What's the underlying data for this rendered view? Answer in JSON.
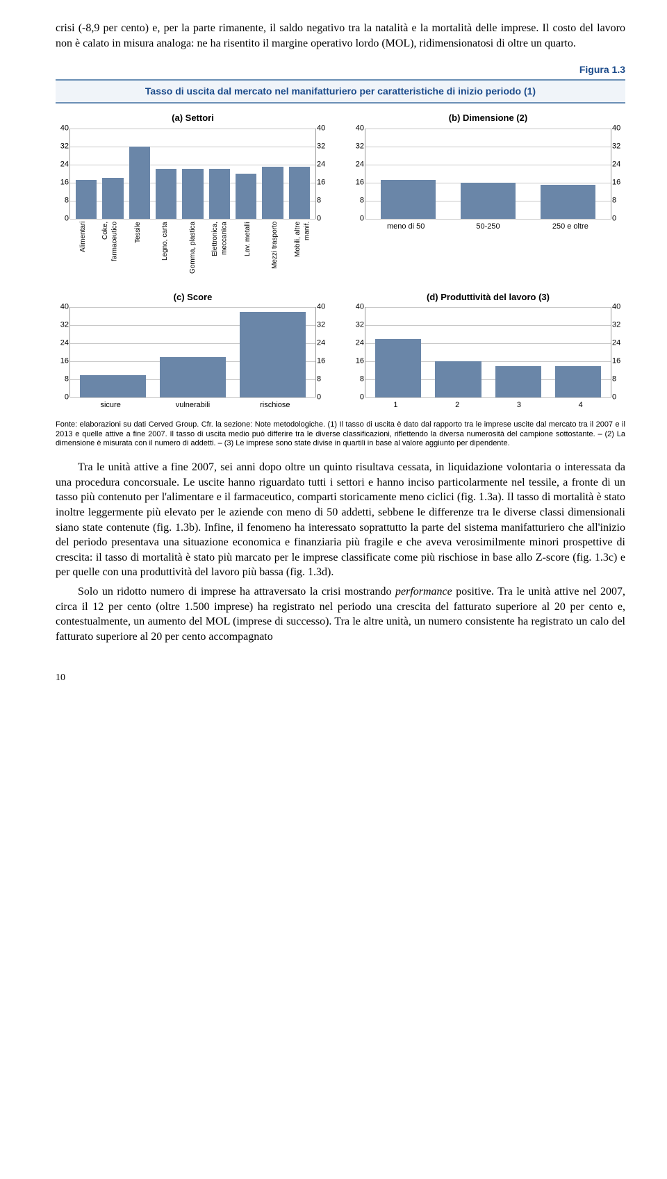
{
  "para1": "crisi (-8,9 per cento) e, per la parte rimanente, il saldo negativo tra la natalità e la mortalità delle imprese. Il costo del lavoro non è calato in misura analoga: ne ha risentito il margine operativo lordo (MOL), ridimensionatosi di oltre un quarto.",
  "figure_label": "Figura 1.3",
  "figure_title": "Tasso di uscita dal mercato nel manifatturiero per caratteristiche di inizio periodo (1)",
  "bar_color": "#6a86a8",
  "grid_color": "#c8c8c8",
  "chart_a": {
    "title": "(a) Settori",
    "ylim": [
      0,
      40
    ],
    "ytick_step": 8,
    "categories": [
      "Alimentari",
      "Coke, farmaceutico",
      "Tessile",
      "Legno, carta",
      "Gomma, plastica",
      "Elettronica, meccanica",
      "Lav. metalli",
      "Mezzi trasporto",
      "Mobili, altre manif."
    ],
    "values": [
      17,
      18,
      32,
      22,
      22,
      22,
      20,
      23,
      23
    ]
  },
  "chart_b": {
    "title": "(b) Dimensione (2)",
    "ylim": [
      0,
      40
    ],
    "ytick_step": 8,
    "categories": [
      "meno di 50",
      "50-250",
      "250 e oltre"
    ],
    "values": [
      17,
      16,
      15
    ]
  },
  "chart_c": {
    "title": "(c) Score",
    "ylim": [
      0,
      40
    ],
    "ytick_step": 8,
    "categories": [
      "sicure",
      "vulnerabili",
      "rischiose"
    ],
    "values": [
      10,
      18,
      38
    ]
  },
  "chart_d": {
    "title": "(d) Produttività del lavoro (3)",
    "ylim": [
      0,
      40
    ],
    "ytick_step": 8,
    "categories": [
      "1",
      "2",
      "3",
      "4"
    ],
    "values": [
      26,
      16,
      14,
      14
    ]
  },
  "source_note": "Fonte: elaborazioni su dati Cerved Group. Cfr. la sezione: Note metodologiche.\n(1) Il tasso di uscita è dato dal rapporto tra le imprese uscite dal mercato tra il 2007 e il 2013 e quelle attive a fine 2007. Il tasso di uscita medio può differire tra le diverse classificazioni, riflettendo la diversa numerosità del campione sottostante. – (2) La dimensione è misurata con il numero di addetti. – (3) Le imprese sono state divise in quartili in base al valore aggiunto per dipendente.",
  "para2": "Tra le unità attive a fine 2007, sei anni dopo oltre un quinto risultava cessata, in liquidazione volontaria o interessata da una procedura concorsuale. Le uscite hanno riguardato tutti i settori e hanno inciso particolarmente nel tessile, a fronte di un tasso più contenuto per l'alimentare e il farmaceutico, comparti storicamente meno ciclici (fig. 1.3a). Il tasso di mortalità è stato inoltre leggermente più elevato per le aziende con meno di 50 addetti, sebbene le differenze tra le diverse classi dimensionali siano state contenute (fig. 1.3b). Infine, il fenomeno ha interessato soprattutto la parte del sistema manifatturiero che all'inizio del periodo presentava una situazione economica e finanziaria più fragile e che aveva verosimilmente minori prospettive di crescita: il tasso di mortalità è stato più marcato per le imprese classificate come più rischiose in base allo Z-score (fig. 1.3c) e per quelle con una produttività del lavoro più bassa (fig. 1.3d).",
  "para3_a": "Solo un ridotto numero di imprese ha attraversato la crisi mostrando ",
  "para3_b": "performance",
  "para3_c": " positive. Tra le unità attive nel 2007, circa il 12 per cento (oltre 1.500 imprese) ha registrato nel periodo una crescita del fatturato superiore al 20 per cento e, contestualmente, un aumento del MOL (imprese di successo). Tra le altre unità, un numero consistente ha registrato un calo del fatturato superiore al 20 per cento accompagnato",
  "page_num": "10"
}
